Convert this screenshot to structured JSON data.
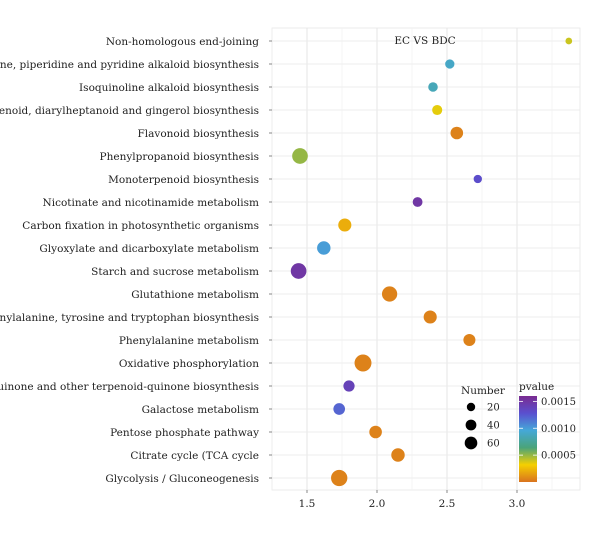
{
  "chart_data": {
    "type": "scatter",
    "annotation": "EC VS BDC",
    "categories": [
      "Non-homologous end-joining",
      "Tropane, piperidine and pyridine alkaloid biosynthesis",
      "Isoquinoline alkaloid biosynthesis",
      "Stilbenoid, diarylheptanoid and gingerol biosynthesis",
      "Flavonoid biosynthesis",
      "Phenylpropanoid biosynthesis",
      "Monoterpenoid biosynthesis",
      "Nicotinate and nicotinamide metabolism",
      "Carbon fixation in photosynthetic organisms",
      "Glyoxylate and dicarboxylate metabolism",
      "Starch and sucrose metabolism",
      "Glutathione metabolism",
      "Phenylalanine, tyrosine and tryptophan biosynthesis",
      "Phenylalanine metabolism",
      "Oxidative phosphorylation",
      "Ubiquinone and other terpenoid-quinone biosynthesis",
      "Galactose metabolism",
      "Pentose phosphate pathway",
      "Citrate cycle (TCA cycle",
      "Glycolysis / Gluconeogenesis"
    ],
    "points": [
      {
        "x": 3.37,
        "number": 3,
        "pvalue": 0.0004
      },
      {
        "x": 2.52,
        "number": 10,
        "pvalue": 0.0009
      },
      {
        "x": 2.4,
        "number": 11,
        "pvalue": 0.00085
      },
      {
        "x": 2.43,
        "number": 13,
        "pvalue": 0.00035
      },
      {
        "x": 2.57,
        "number": 25,
        "pvalue": 5e-05
      },
      {
        "x": 1.45,
        "number": 45,
        "pvalue": 0.0005
      },
      {
        "x": 2.72,
        "number": 7,
        "pvalue": 0.0013
      },
      {
        "x": 2.29,
        "number": 12,
        "pvalue": 0.0015
      },
      {
        "x": 1.77,
        "number": 28,
        "pvalue": 0.0002
      },
      {
        "x": 1.62,
        "number": 30,
        "pvalue": 0.001
      },
      {
        "x": 1.44,
        "number": 45,
        "pvalue": 0.0015
      },
      {
        "x": 2.09,
        "number": 42,
        "pvalue": 5e-05
      },
      {
        "x": 2.38,
        "number": 28,
        "pvalue": 5e-05
      },
      {
        "x": 2.66,
        "number": 22,
        "pvalue": 5e-05
      },
      {
        "x": 1.9,
        "number": 55,
        "pvalue": 5e-05
      },
      {
        "x": 1.8,
        "number": 18,
        "pvalue": 0.0014
      },
      {
        "x": 1.73,
        "number": 20,
        "pvalue": 0.0012
      },
      {
        "x": 1.99,
        "number": 25,
        "pvalue": 5e-05
      },
      {
        "x": 2.15,
        "number": 30,
        "pvalue": 5e-05
      },
      {
        "x": 1.73,
        "number": 50,
        "pvalue": 5e-05
      }
    ],
    "xlim": [
      1.25,
      3.45
    ],
    "xticks": [
      "1.5",
      "2.0",
      "2.5",
      "3.0"
    ],
    "xtick_values": [
      1.5,
      2.0,
      2.5,
      3.0
    ],
    "grid": true,
    "size_legend": {
      "title": "Number",
      "labels": [
        "20",
        "40",
        "60"
      ],
      "values": [
        20,
        40,
        60
      ]
    },
    "color_legend": {
      "title": "pvalue",
      "labels": [
        "0.0015",
        "0.0010",
        "0.0005"
      ],
      "values": [
        0.0015,
        0.001,
        0.0005
      ],
      "range": [
        0,
        0.0016
      ],
      "colors": [
        "#d9731f",
        "#f5d000",
        "#4aa47a",
        "#45a8d8",
        "#5a4fcf",
        "#7a2c91"
      ]
    }
  }
}
